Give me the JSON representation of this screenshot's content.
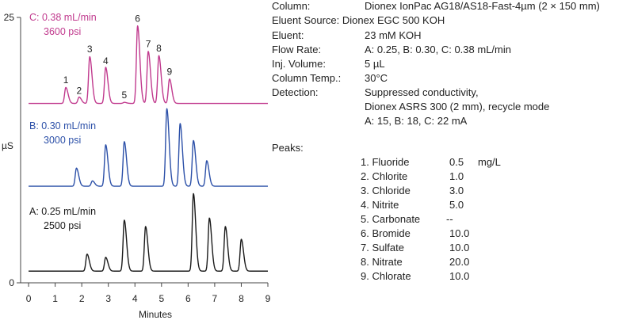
{
  "chart_data": {
    "type": "line",
    "xlabel": "Minutes",
    "ylabel": "µS",
    "xlim": [
      -0.3,
      9
    ],
    "ylim": [
      0,
      25
    ],
    "x_ticks": [
      0,
      1,
      2,
      3,
      4,
      5,
      6,
      7,
      8,
      9
    ],
    "x_tick_labels": [
      "0",
      "1",
      "2",
      "3",
      "4",
      "5",
      "6",
      "7",
      "8",
      "9"
    ],
    "y_ticks": [
      0,
      25
    ],
    "y_tick_labels": [
      "0",
      "25"
    ],
    "series": [
      {
        "name": "A",
        "label_line1": "A: 0.25 mL/min",
        "label_line2": "2500 psi",
        "color": "#1a1a1a",
        "baseline": 1.1,
        "peaks": [
          {
            "x": 2.2,
            "h": 1.6
          },
          {
            "x": 2.9,
            "h": 1.3
          },
          {
            "x": 3.6,
            "h": 4.8
          },
          {
            "x": 4.4,
            "h": 4.2
          },
          {
            "x": 6.2,
            "h": 7.3
          },
          {
            "x": 6.8,
            "h": 5.0
          },
          {
            "x": 7.4,
            "h": 4.2
          },
          {
            "x": 8.0,
            "h": 3.0
          }
        ]
      },
      {
        "name": "B",
        "label_line1": "B: 0.30 mL/min",
        "label_line2": "3000 psi",
        "color": "#2c50a8",
        "baseline": 9.1,
        "peaks": [
          {
            "x": 1.8,
            "h": 1.7
          },
          {
            "x": 2.4,
            "h": 0.5
          },
          {
            "x": 2.9,
            "h": 3.9
          },
          {
            "x": 3.6,
            "h": 4.2
          },
          {
            "x": 5.2,
            "h": 7.3
          },
          {
            "x": 5.7,
            "h": 5.9
          },
          {
            "x": 6.2,
            "h": 4.3
          },
          {
            "x": 6.7,
            "h": 2.4
          }
        ]
      },
      {
        "name": "C",
        "label_line1": "C: 0.38 mL/min",
        "label_line2": "3600 psi",
        "color": "#c13a8e",
        "baseline": 16.9,
        "peaks": [
          {
            "x": 1.4,
            "h": 1.5
          },
          {
            "x": 1.9,
            "h": 0.6
          },
          {
            "x": 2.3,
            "h": 4.4
          },
          {
            "x": 2.9,
            "h": 3.4
          },
          {
            "x": 3.6,
            "h": 0.1
          },
          {
            "x": 4.1,
            "h": 7.3
          },
          {
            "x": 4.5,
            "h": 4.9
          },
          {
            "x": 4.9,
            "h": 4.5
          },
          {
            "x": 5.3,
            "h": 2.3
          }
        ]
      }
    ],
    "peak_labels": [
      {
        "text": "1",
        "x": 1.4,
        "y": 18.8
      },
      {
        "text": "2",
        "x": 1.9,
        "y": 17.8
      },
      {
        "text": "3",
        "x": 2.3,
        "y": 21.7
      },
      {
        "text": "4",
        "x": 2.9,
        "y": 20.6
      },
      {
        "text": "5",
        "x": 3.6,
        "y": 17.4
      },
      {
        "text": "6",
        "x": 4.1,
        "y": 24.6
      },
      {
        "text": "7",
        "x": 4.5,
        "y": 22.2
      },
      {
        "text": "8",
        "x": 4.9,
        "y": 21.8
      },
      {
        "text": "9",
        "x": 5.3,
        "y": 19.6
      }
    ]
  },
  "conditions": [
    {
      "label": "Column:",
      "value": "Dionex IonPac AG18/AS18-Fast-4µm (2 × 150 mm)"
    },
    {
      "label": "Eluent Source: Dionex EGC 500 KOH",
      "value": ""
    },
    {
      "label": "Eluent:",
      "value": "23 mM KOH"
    },
    {
      "label": "Flow Rate:",
      "value": "A: 0.25, B: 0.30, C: 0.38 mL/min"
    },
    {
      "label": "Inj. Volume:",
      "value": "5 µL"
    },
    {
      "label": "Column Temp.:",
      "value": "30°C"
    },
    {
      "label": "Detection:",
      "value": "Suppressed conductivity,"
    },
    {
      "label": "",
      "value": "Dionex ASRS 300 (2 mm), recycle mode"
    },
    {
      "label": "",
      "value": "A: 15, B: 18, C: 22 mA"
    }
  ],
  "peaks_title": "Peaks:",
  "peaks_unit": "mg/L",
  "peaks": [
    {
      "name": "1. Fluoride",
      "conc": "0.5"
    },
    {
      "name": "2. Chlorite",
      "conc": "1.0"
    },
    {
      "name": "3. Chloride",
      "conc": "3.0"
    },
    {
      "name": "4. Nitrite",
      "conc": "5.0"
    },
    {
      "name": "5. Carbonate",
      "conc": "--"
    },
    {
      "name": "6. Bromide",
      "conc": "10.0"
    },
    {
      "name": "7. Sulfate",
      "conc": "10.0"
    },
    {
      "name": "8. Nitrate",
      "conc": "20.0"
    },
    {
      "name": "9. Chlorate",
      "conc": "10.0"
    }
  ]
}
